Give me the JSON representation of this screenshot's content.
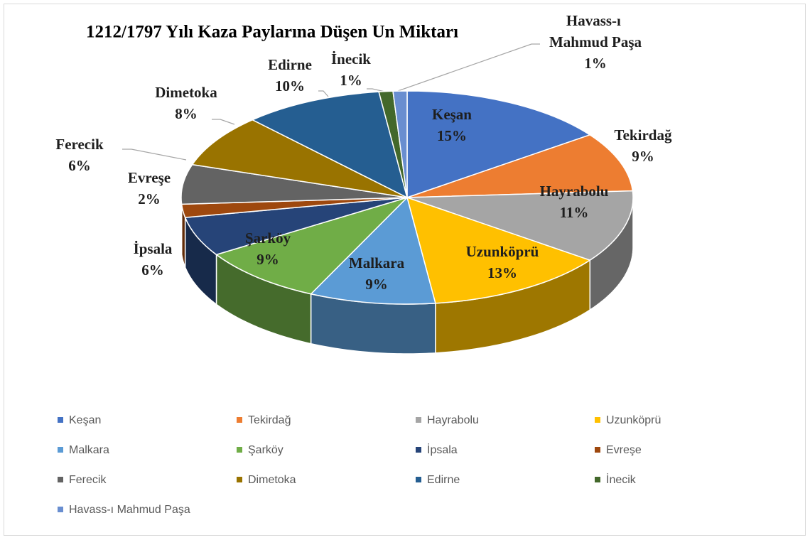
{
  "chart_data": {
    "type": "pie",
    "title": "1212/1797 Yılı Kaza Paylarına Düşen Un Miktarı",
    "categories": [
      "Keşan",
      "Tekirdağ",
      "Hayrabolu",
      "Uzunköprü",
      "Malkara",
      "Şarköy",
      "İpsala",
      "Evreşe",
      "Ferecik",
      "Dimetoka",
      "Edirne",
      "İnecik",
      "Havass-ı Mahmud Paşa"
    ],
    "values": [
      15,
      9,
      11,
      13,
      9,
      9,
      6,
      2,
      6,
      8,
      10,
      1,
      1
    ],
    "value_labels": [
      "15%",
      "9%",
      "11%",
      "13%",
      "9%",
      "9%",
      "6%",
      "2%",
      "6%",
      "8%",
      "10%",
      "1%",
      "1%"
    ],
    "colors": [
      "#4472c4",
      "#ed7d31",
      "#a5a5a5",
      "#ffc000",
      "#5b9bd5",
      "#70ad47",
      "#264478",
      "#9e480e",
      "#636363",
      "#997300",
      "#255e91",
      "#43682b",
      "#698ed0"
    ],
    "legend": "bottom"
  }
}
